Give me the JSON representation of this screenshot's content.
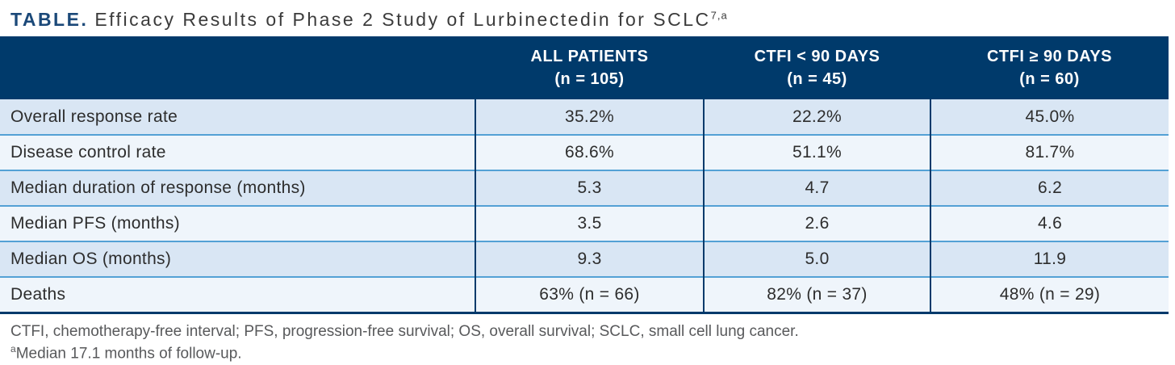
{
  "title": {
    "label": "TABLE.",
    "text": "Efficacy Results of Phase 2 Study of Lurbinectedin for SCLC",
    "superscript": "7,a"
  },
  "table": {
    "columns": [
      {
        "line1": "ALL PATIENTS",
        "line2": "(n = 105)"
      },
      {
        "line1": "CTFI < 90 DAYS",
        "line2": "(n = 45)"
      },
      {
        "line1": "CTFI ≥ 90 DAYS",
        "line2": "(n = 60)"
      }
    ],
    "rows": [
      {
        "label": "Overall response rate",
        "values": [
          "35.2%",
          "22.2%",
          "45.0%"
        ]
      },
      {
        "label": "Disease control rate",
        "values": [
          "68.6%",
          "51.1%",
          "81.7%"
        ]
      },
      {
        "label": "Median duration of response (months)",
        "values": [
          "5.3",
          "4.7",
          "6.2"
        ]
      },
      {
        "label": "Median PFS (months)",
        "values": [
          "3.5",
          "2.6",
          "4.6"
        ]
      },
      {
        "label": "Median OS (months)",
        "values": [
          "9.3",
          "5.0",
          "11.9"
        ]
      },
      {
        "label": "Deaths",
        "values": [
          "63% (n = 66)",
          "82% (n = 37)",
          "48% (n = 29)"
        ]
      }
    ]
  },
  "footnotes": {
    "abbreviations": "CTFI, chemotherapy-free interval; PFS, progression-free survival; OS, overall survival; SCLC, small cell lung cancer.",
    "note_marker": "a",
    "note_text": "Median 17.1 months of follow-up."
  },
  "colors": {
    "header_navy": "#003a6b",
    "row_separator_blue": "#54a1d5",
    "row_shade_dark": "#d9e6f4",
    "row_shade_light": "#eff5fb",
    "title_accent_navy": "#1b4979",
    "body_text": "#2d2d2d",
    "footnote_gray": "#58595b"
  }
}
